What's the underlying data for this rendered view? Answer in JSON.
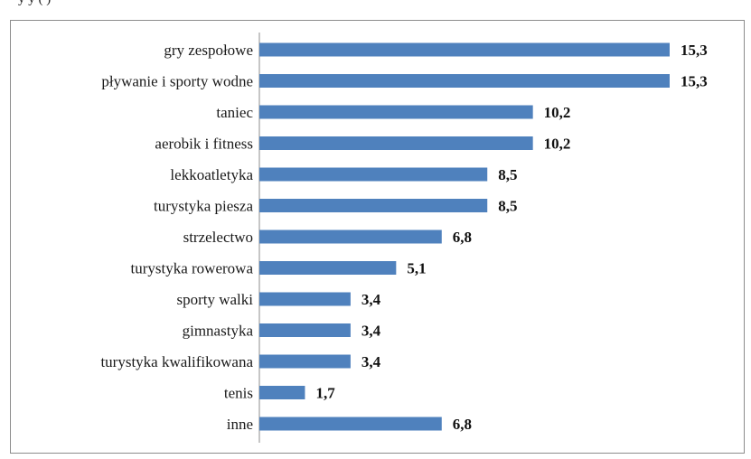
{
  "header_text": "y                                                   y                                 (   )",
  "chart_data": {
    "type": "bar",
    "orientation": "horizontal",
    "categories": [
      "gry zespołowe",
      "pływanie i sporty wodne",
      "taniec",
      "aerobik i fitness",
      "lekkoatletyka",
      "turystyka piesza",
      "strzelectwo",
      "turystyka rowerowa",
      "sporty walki",
      "gimnastyka",
      "turystyka kwalifikowana",
      "tenis",
      "inne"
    ],
    "values": [
      15.3,
      15.3,
      10.2,
      10.2,
      8.5,
      8.5,
      6.8,
      5.1,
      3.4,
      3.4,
      3.4,
      1.7,
      6.8
    ],
    "value_labels": [
      "15,3",
      "15,3",
      "10,2",
      "10,2",
      "8,5",
      "8,5",
      "6,8",
      "5,1",
      "3,4",
      "3,4",
      "3,4",
      "1,7",
      "6,8"
    ],
    "bar_color": "#4F81BD",
    "axis_color": "#8c8c8c",
    "xlim": [
      0,
      15.3
    ],
    "grid": false,
    "legend": "none"
  }
}
